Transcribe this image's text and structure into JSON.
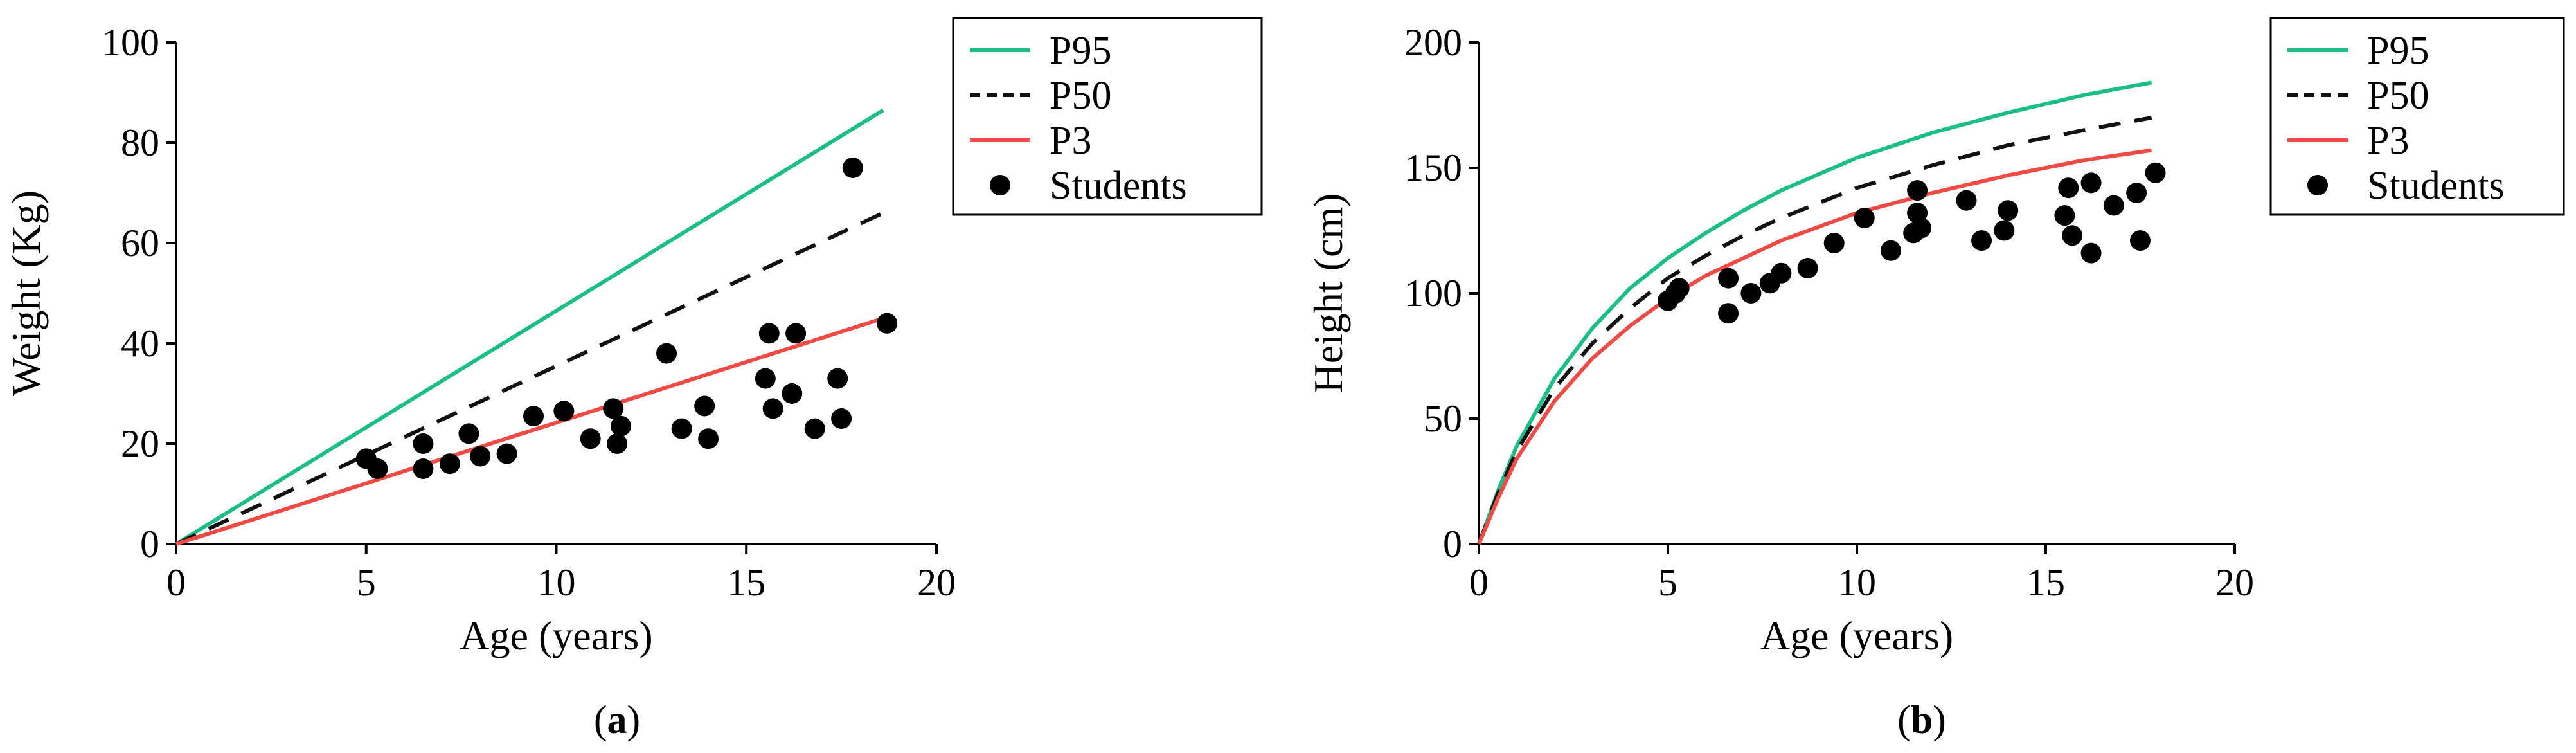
{
  "colors": {
    "p95": "#1bbf86",
    "p50": "#111111",
    "p3": "#f04a45",
    "students": "#000000"
  },
  "chart_data": [
    {
      "type": "scatter",
      "panel_label": "(a)",
      "xlabel": "Age (years)",
      "ylabel": "Weight (Kg)",
      "xlim": [
        0,
        20
      ],
      "ylim": [
        0,
        100
      ],
      "xticks": [
        "0",
        "5",
        "10",
        "15",
        "20"
      ],
      "yticks": [
        "0",
        "20",
        "40",
        "60",
        "80",
        "100"
      ],
      "grid": false,
      "legend_position": "top-right",
      "series": [
        {
          "name": "P95",
          "style": "solid-line",
          "x": [
            0,
            18.6
          ],
          "y": [
            0,
            86.5
          ]
        },
        {
          "name": "P50",
          "style": "dashed-line",
          "x": [
            0,
            18.6
          ],
          "y": [
            0,
            66
          ]
        },
        {
          "name": "P3",
          "style": "solid-line",
          "x": [
            0,
            18.6
          ],
          "y": [
            0,
            45
          ]
        },
        {
          "name": "Students",
          "style": "markers",
          "x": [
            5.0,
            5.3,
            6.5,
            6.5,
            7.2,
            7.7,
            8.0,
            8.7,
            9.4,
            10.2,
            10.9,
            11.5,
            11.6,
            11.7,
            12.9,
            13.3,
            13.9,
            14.0,
            15.5,
            15.6,
            15.7,
            16.2,
            16.3,
            16.8,
            17.4,
            17.5,
            17.8,
            18.7
          ],
          "y": [
            17,
            15,
            20,
            15,
            16,
            22,
            17.5,
            18,
            25.5,
            26.5,
            21,
            27,
            20,
            23.5,
            38,
            23,
            27.5,
            21,
            33,
            42,
            27,
            30,
            42,
            23,
            33,
            25,
            75,
            44
          ]
        }
      ]
    },
    {
      "type": "scatter",
      "panel_label": "(b)",
      "xlabel": "Age (years)",
      "ylabel": "Height (cm)",
      "xlim": [
        0,
        20
      ],
      "ylim": [
        0,
        200
      ],
      "xticks": [
        "0",
        "5",
        "10",
        "15",
        "20"
      ],
      "yticks": [
        "0",
        "50",
        "100",
        "150",
        "200"
      ],
      "grid": false,
      "legend_position": "top-right",
      "series": [
        {
          "name": "P95",
          "style": "solid-line",
          "x": [
            0,
            0.5,
            1,
            2,
            3,
            4,
            5,
            6,
            7,
            8,
            10,
            12,
            14,
            16,
            17.8
          ],
          "y": [
            0,
            21,
            39,
            66,
            86,
            102,
            114,
            124,
            133,
            141,
            154,
            164,
            172,
            179,
            184
          ]
        },
        {
          "name": "P50",
          "style": "dashed-line",
          "x": [
            0,
            0.5,
            1,
            2,
            3,
            4,
            5,
            6,
            7,
            8,
            10,
            12,
            14,
            16,
            17.8
          ],
          "y": [
            0,
            20,
            37,
            62,
            80,
            94,
            106,
            115,
            123,
            130,
            142,
            151,
            159,
            165,
            170
          ]
        },
        {
          "name": "P3",
          "style": "solid-line",
          "x": [
            0,
            0.5,
            1,
            2,
            3,
            4,
            5,
            6,
            7,
            8,
            10,
            12,
            14,
            16,
            17.8
          ],
          "y": [
            0,
            18,
            34,
            57,
            74,
            87,
            98,
            107,
            114,
            121,
            132,
            140,
            147,
            153,
            157
          ]
        },
        {
          "name": "Students",
          "style": "markers",
          "x": [
            5.0,
            5.2,
            5.3,
            6.6,
            6.6,
            7.2,
            7.7,
            8.0,
            8.7,
            9.4,
            10.2,
            10.9,
            11.5,
            11.6,
            11.6,
            11.7,
            12.9,
            13.3,
            13.9,
            14.0,
            15.5,
            15.6,
            15.7,
            16.2,
            16.2,
            16.8,
            17.4,
            17.5,
            17.9
          ],
          "y": [
            97,
            100,
            102,
            92,
            106,
            100,
            104,
            108,
            110,
            120,
            130,
            117,
            124,
            141,
            132,
            126,
            137,
            121,
            125,
            133,
            131,
            142,
            123,
            144,
            116,
            135,
            140,
            121,
            148
          ]
        }
      ]
    }
  ]
}
